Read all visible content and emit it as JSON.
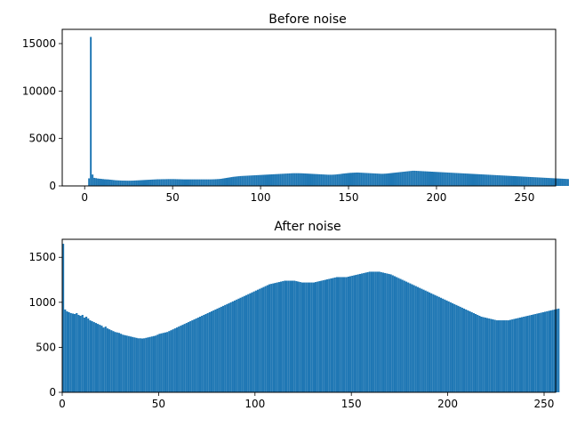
{
  "chart_data": [
    {
      "type": "bar",
      "title": "Before noise",
      "xlabel": "",
      "ylabel": "",
      "xlim": [
        -12.75,
        267.75
      ],
      "ylim": [
        0,
        16500
      ],
      "x_ticks": [
        "0",
        "50",
        "100",
        "150",
        "200",
        "250"
      ],
      "y_ticks": [
        "0",
        "5000",
        "10000",
        "15000"
      ],
      "grid": false,
      "color": "#1f77b4",
      "bin_start": 0,
      "bin_width": 1,
      "values": [
        0,
        0,
        800,
        15700,
        1200,
        850,
        820,
        780,
        760,
        740,
        720,
        700,
        690,
        680,
        660,
        640,
        620,
        600,
        590,
        580,
        570,
        560,
        560,
        555,
        550,
        550,
        555,
        560,
        570,
        580,
        590,
        600,
        610,
        620,
        630,
        640,
        650,
        660,
        670,
        680,
        690,
        700,
        700,
        705,
        710,
        710,
        715,
        720,
        720,
        720,
        720,
        715,
        710,
        705,
        700,
        695,
        690,
        690,
        690,
        690,
        690,
        690,
        690,
        690,
        690,
        690,
        690,
        690,
        690,
        690,
        690,
        690,
        695,
        700,
        710,
        720,
        730,
        750,
        780,
        810,
        840,
        870,
        900,
        930,
        960,
        980,
        1000,
        1020,
        1040,
        1050,
        1060,
        1070,
        1080,
        1090,
        1100,
        1110,
        1120,
        1130,
        1140,
        1150,
        1160,
        1170,
        1180,
        1190,
        1200,
        1210,
        1220,
        1230,
        1240,
        1250,
        1260,
        1270,
        1280,
        1290,
        1300,
        1310,
        1320,
        1330,
        1340,
        1340,
        1340,
        1340,
        1335,
        1330,
        1320,
        1310,
        1300,
        1290,
        1280,
        1270,
        1260,
        1250,
        1240,
        1230,
        1220,
        1210,
        1200,
        1190,
        1180,
        1180,
        1180,
        1190,
        1200,
        1220,
        1240,
        1260,
        1290,
        1310,
        1330,
        1350,
        1370,
        1380,
        1390,
        1400,
        1410,
        1410,
        1400,
        1390,
        1380,
        1370,
        1360,
        1350,
        1340,
        1330,
        1320,
        1310,
        1300,
        1290,
        1280,
        1280,
        1290,
        1300,
        1320,
        1340,
        1360,
        1380,
        1400,
        1420,
        1440,
        1460,
        1480,
        1500,
        1520,
        1540,
        1560,
        1580,
        1600,
        1600,
        1590,
        1580,
        1570,
        1560,
        1550,
        1540,
        1530,
        1520,
        1510,
        1500,
        1490,
        1480,
        1470,
        1460,
        1450,
        1440,
        1430,
        1420,
        1410,
        1400,
        1390,
        1380,
        1370,
        1360,
        1350,
        1340,
        1330,
        1320,
        1310,
        1300,
        1290,
        1280,
        1270,
        1260,
        1250,
        1240,
        1230,
        1220,
        1210,
        1200,
        1190,
        1180,
        1170,
        1160,
        1150,
        1140,
        1130,
        1120,
        1110,
        1100,
        1090,
        1080,
        1070,
        1060,
        1050,
        1040,
        1030,
        1020,
        1010,
        1000,
        990,
        980,
        970,
        960,
        950,
        940,
        930,
        920,
        910,
        900,
        890,
        880,
        870,
        860,
        850,
        840,
        830,
        820,
        810,
        800,
        790,
        780,
        770,
        760,
        750,
        740,
        730,
        720,
        710,
        700,
        690,
        680,
        670,
        660,
        650,
        640,
        630,
        620,
        610,
        600,
        590,
        580,
        570,
        560,
        550,
        540,
        530,
        520,
        510,
        500,
        490,
        480,
        470,
        460,
        450,
        440,
        430,
        420,
        410,
        400,
        390,
        380,
        370,
        360,
        350,
        340,
        330,
        320,
        310,
        300,
        290,
        280,
        270,
        260,
        250,
        240,
        230,
        220,
        210,
        200,
        190,
        180,
        170,
        160,
        150,
        140,
        130,
        120,
        110,
        100,
        90,
        80,
        70,
        60,
        50,
        40,
        30,
        20,
        10,
        1200,
        1300,
        1250,
        1100,
        0,
        0,
        0,
        0,
        0,
        0,
        0,
        0,
        0,
        0,
        0,
        0,
        0,
        0,
        0,
        0
      ]
    },
    {
      "type": "bar",
      "title": "After noise",
      "xlabel": "",
      "ylabel": "",
      "xlim": [
        0,
        256
      ],
      "ylim": [
        0,
        1700
      ],
      "x_ticks": [
        "0",
        "50",
        "100",
        "150",
        "200",
        "250"
      ],
      "y_ticks": [
        "0",
        "500",
        "1000",
        "1500"
      ],
      "grid": false,
      "color": "#1f77b4",
      "bin_start": 0,
      "bin_width": 1,
      "values": [
        1650,
        920,
        900,
        890,
        880,
        875,
        870,
        880,
        860,
        850,
        860,
        830,
        840,
        820,
        800,
        790,
        780,
        770,
        760,
        750,
        740,
        720,
        730,
        710,
        700,
        690,
        680,
        670,
        665,
        660,
        650,
        640,
        635,
        630,
        625,
        620,
        615,
        610,
        605,
        600,
        600,
        598,
        600,
        605,
        610,
        615,
        620,
        625,
        630,
        640,
        650,
        655,
        660,
        665,
        670,
        680,
        690,
        700,
        710,
        720,
        730,
        740,
        750,
        760,
        770,
        780,
        790,
        800,
        810,
        820,
        830,
        840,
        850,
        860,
        870,
        880,
        890,
        900,
        910,
        920,
        930,
        940,
        950,
        960,
        970,
        980,
        990,
        1000,
        1010,
        1020,
        1030,
        1040,
        1050,
        1060,
        1070,
        1080,
        1090,
        1100,
        1110,
        1120,
        1130,
        1140,
        1150,
        1160,
        1170,
        1180,
        1190,
        1200,
        1205,
        1210,
        1215,
        1220,
        1225,
        1230,
        1235,
        1240,
        1240,
        1240,
        1240,
        1240,
        1240,
        1235,
        1230,
        1225,
        1220,
        1220,
        1220,
        1220,
        1220,
        1220,
        1220,
        1225,
        1230,
        1235,
        1240,
        1245,
        1250,
        1255,
        1260,
        1265,
        1270,
        1275,
        1280,
        1280,
        1280,
        1280,
        1280,
        1280,
        1285,
        1290,
        1295,
        1300,
        1305,
        1310,
        1315,
        1320,
        1325,
        1330,
        1335,
        1340,
        1340,
        1340,
        1340,
        1340,
        1340,
        1335,
        1330,
        1325,
        1320,
        1315,
        1310,
        1300,
        1290,
        1280,
        1270,
        1260,
        1250,
        1240,
        1230,
        1220,
        1210,
        1200,
        1190,
        1180,
        1170,
        1160,
        1150,
        1140,
        1130,
        1120,
        1110,
        1100,
        1090,
        1080,
        1070,
        1060,
        1050,
        1040,
        1030,
        1020,
        1010,
        1000,
        990,
        980,
        970,
        960,
        950,
        940,
        930,
        920,
        910,
        900,
        890,
        880,
        870,
        860,
        850,
        840,
        835,
        830,
        825,
        820,
        815,
        810,
        805,
        800,
        800,
        800,
        800,
        800,
        800,
        800,
        805,
        810,
        815,
        820,
        825,
        830,
        835,
        840,
        845,
        850,
        855,
        860,
        865,
        870,
        875,
        880,
        885,
        890,
        895,
        900,
        905,
        910,
        915,
        920,
        925,
        930
      ]
    }
  ],
  "colors": {
    "bar": "#1f77b4",
    "axes": "#000000",
    "background": "#ffffff"
  }
}
